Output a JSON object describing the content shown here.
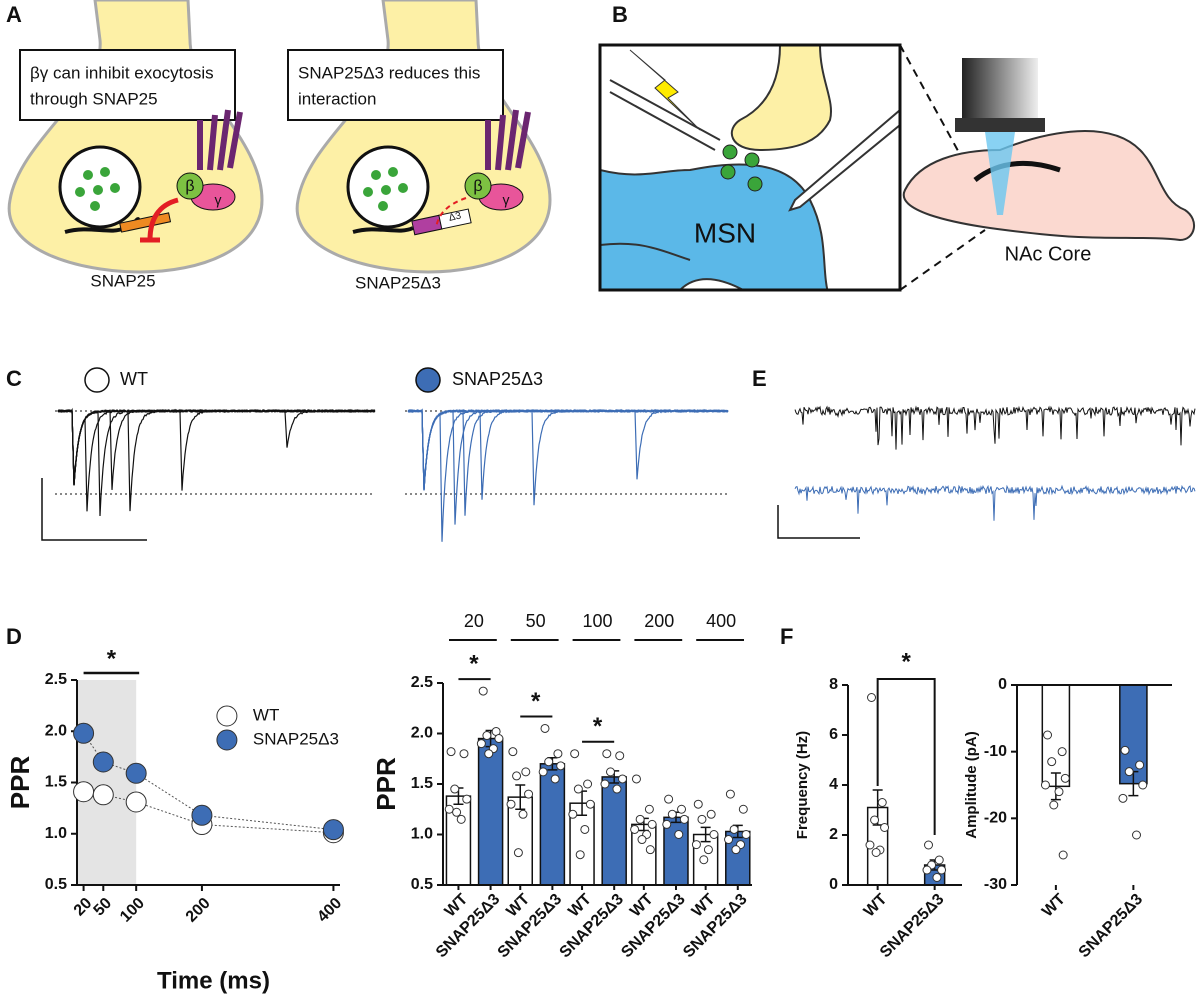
{
  "panel_labels": [
    "A",
    "B",
    "C",
    "E",
    "D",
    "F"
  ],
  "diagram_a": {
    "box_left": [
      "βγ can inhibit exocytosis",
      "through SNAP25"
    ],
    "box_right": [
      "SNAP25Δ3 reduces this",
      "interaction"
    ],
    "label_left": "SNAP25",
    "label_right": "SNAP25Δ3",
    "beta": "β",
    "gamma": "γ",
    "delta": "Δ3"
  },
  "diagram_b": {
    "cell": "MSN",
    "region": "NAc Core"
  },
  "traces_c": {
    "legend": [
      "WT",
      "SNAP25Δ3"
    ]
  },
  "chart_data": [
    {
      "type": "line",
      "x": [
        20,
        50,
        100,
        200,
        400
      ],
      "xlim": [
        10,
        410
      ],
      "xticks": [
        20,
        50,
        100,
        200,
        400
      ],
      "ylim": [
        0.5,
        2.5
      ],
      "yticks": [
        0.5,
        {
          "value": 1,
          "label": "1.0"
        },
        1.5,
        {
          "value": 2,
          "label": "2.0"
        },
        2.5
      ],
      "x_label": "Time (ms)",
      "y_label": "PPR",
      "shaded_range": [
        10,
        100
      ],
      "annotation": {
        "text": "*",
        "range": [
          20,
          100
        ]
      },
      "legend": "right",
      "series": [
        {
          "name": "WT",
          "color": "#ffffff",
          "values": [
            1.41,
            1.38,
            1.31,
            1.09,
            1.01
          ]
        },
        {
          "name": "SNAP25Δ3",
          "color": "#3d6db5",
          "values": [
            1.98,
            1.7,
            1.59,
            1.18,
            1.04
          ]
        }
      ]
    },
    {
      "type": "bar",
      "categories": [
        20,
        50,
        100,
        200,
        400
      ],
      "ylim": [
        0.5,
        2.5
      ],
      "yticks": [
        0.5,
        {
          "value": 1,
          "label": "1.0"
        },
        1.5,
        {
          "value": 2,
          "label": "2.0"
        },
        2.5
      ],
      "y_label": "PPR",
      "significance": [
        "*",
        "*",
        "*",
        null,
        null
      ],
      "series": [
        {
          "name": "WT",
          "color": "#ffffff",
          "values": [
            1.38,
            1.37,
            1.31,
            1.1,
            1.0
          ],
          "errors": [
            0.08,
            0.12,
            0.12,
            0.06,
            0.07
          ],
          "points": [
            [
              1.82,
              1.8,
              1.45,
              1.35,
              1.25,
              1.15,
              1.22
            ],
            [
              1.82,
              1.62,
              1.58,
              1.4,
              1.3,
              1.2,
              0.82
            ],
            [
              1.8,
              1.5,
              1.45,
              1.3,
              1.2,
              1.05,
              0.8
            ],
            [
              1.55,
              1.25,
              1.15,
              1.1,
              1.05,
              1.0,
              0.95,
              0.85
            ],
            [
              1.3,
              1.2,
              1.15,
              1.0,
              0.9,
              0.85,
              0.75
            ]
          ]
        },
        {
          "name": "SNAP25Δ3",
          "color": "#3d6db5",
          "values": [
            1.95,
            1.7,
            1.57,
            1.17,
            1.03
          ],
          "errors": [
            0.08,
            0.06,
            0.06,
            0.05,
            0.06
          ],
          "points": [
            [
              2.42,
              2.02,
              1.98,
              1.95,
              1.9,
              1.85,
              1.8
            ],
            [
              2.05,
              1.8,
              1.72,
              1.68,
              1.62,
              1.55
            ],
            [
              1.8,
              1.78,
              1.62,
              1.55,
              1.5,
              1.45
            ],
            [
              1.35,
              1.25,
              1.2,
              1.15,
              1.1,
              1.0
            ],
            [
              1.4,
              1.25,
              1.05,
              1.0,
              0.95,
              0.9,
              0.85
            ]
          ]
        }
      ]
    },
    {
      "type": "bar",
      "categories": [
        "WT",
        "SNAP25Δ3"
      ],
      "values": [
        3.1,
        0.8
      ],
      "errors": [
        0.7,
        0.2
      ],
      "colors": [
        "#ffffff",
        "#3d6db5"
      ],
      "points": [
        [
          7.5,
          3.3,
          2.6,
          2.3,
          1.6,
          1.4,
          1.3
        ],
        [
          1.6,
          1.0,
          0.8,
          0.6,
          0.6,
          0.3
        ]
      ],
      "ylim": [
        0,
        8
      ],
      "yticks": [
        0,
        2,
        4,
        6,
        8
      ],
      "y_label": "Frequency (Hz)",
      "significance": "*"
    },
    {
      "type": "bar",
      "categories": [
        "WT",
        "SNAP25Δ3"
      ],
      "values": [
        -15.2,
        -14.8
      ],
      "errors": [
        2.0,
        1.8
      ],
      "colors": [
        "#ffffff",
        "#3d6db5"
      ],
      "points": [
        [
          -7.5,
          -10,
          -11.5,
          -14,
          -15,
          -16,
          -18,
          -25.5
        ],
        [
          -9.8,
          -12,
          -13,
          -15,
          -17,
          -22.5
        ]
      ],
      "ylim": [
        -30,
        0
      ],
      "yticks": [
        -30,
        -20,
        -10,
        0
      ],
      "y_label": "Amplitude (pA)"
    }
  ]
}
